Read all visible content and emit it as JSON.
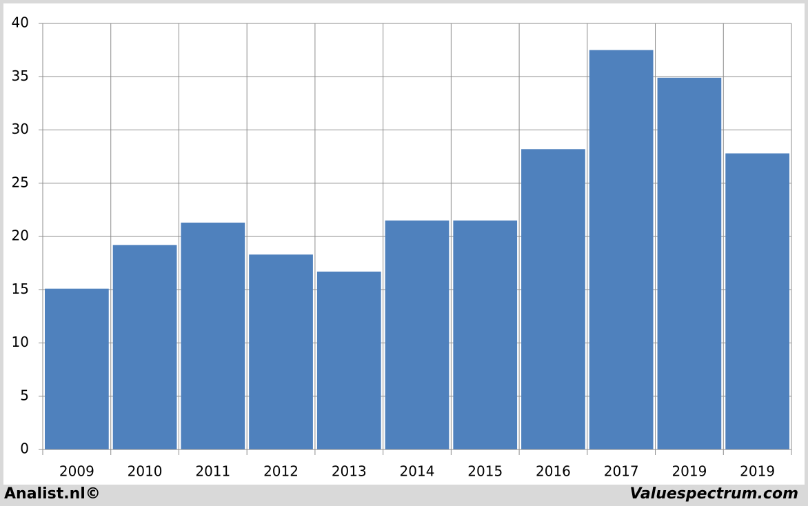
{
  "chart_data": {
    "type": "bar",
    "categories": [
      "2009",
      "2010",
      "2011",
      "2012",
      "2013",
      "2014",
      "2015",
      "2016",
      "2017",
      "2019",
      "2019"
    ],
    "values": [
      15.1,
      19.2,
      21.3,
      18.3,
      16.7,
      21.5,
      21.5,
      28.2,
      37.5,
      34.9,
      27.8
    ],
    "color": "#4f81bd",
    "ylim": [
      0,
      40
    ],
    "yticks": [
      0,
      5,
      10,
      15,
      20,
      25,
      30,
      35,
      40
    ],
    "grid": true
  },
  "footer": {
    "left": "Analist.nl©",
    "right": "Valuespectrum.com"
  }
}
